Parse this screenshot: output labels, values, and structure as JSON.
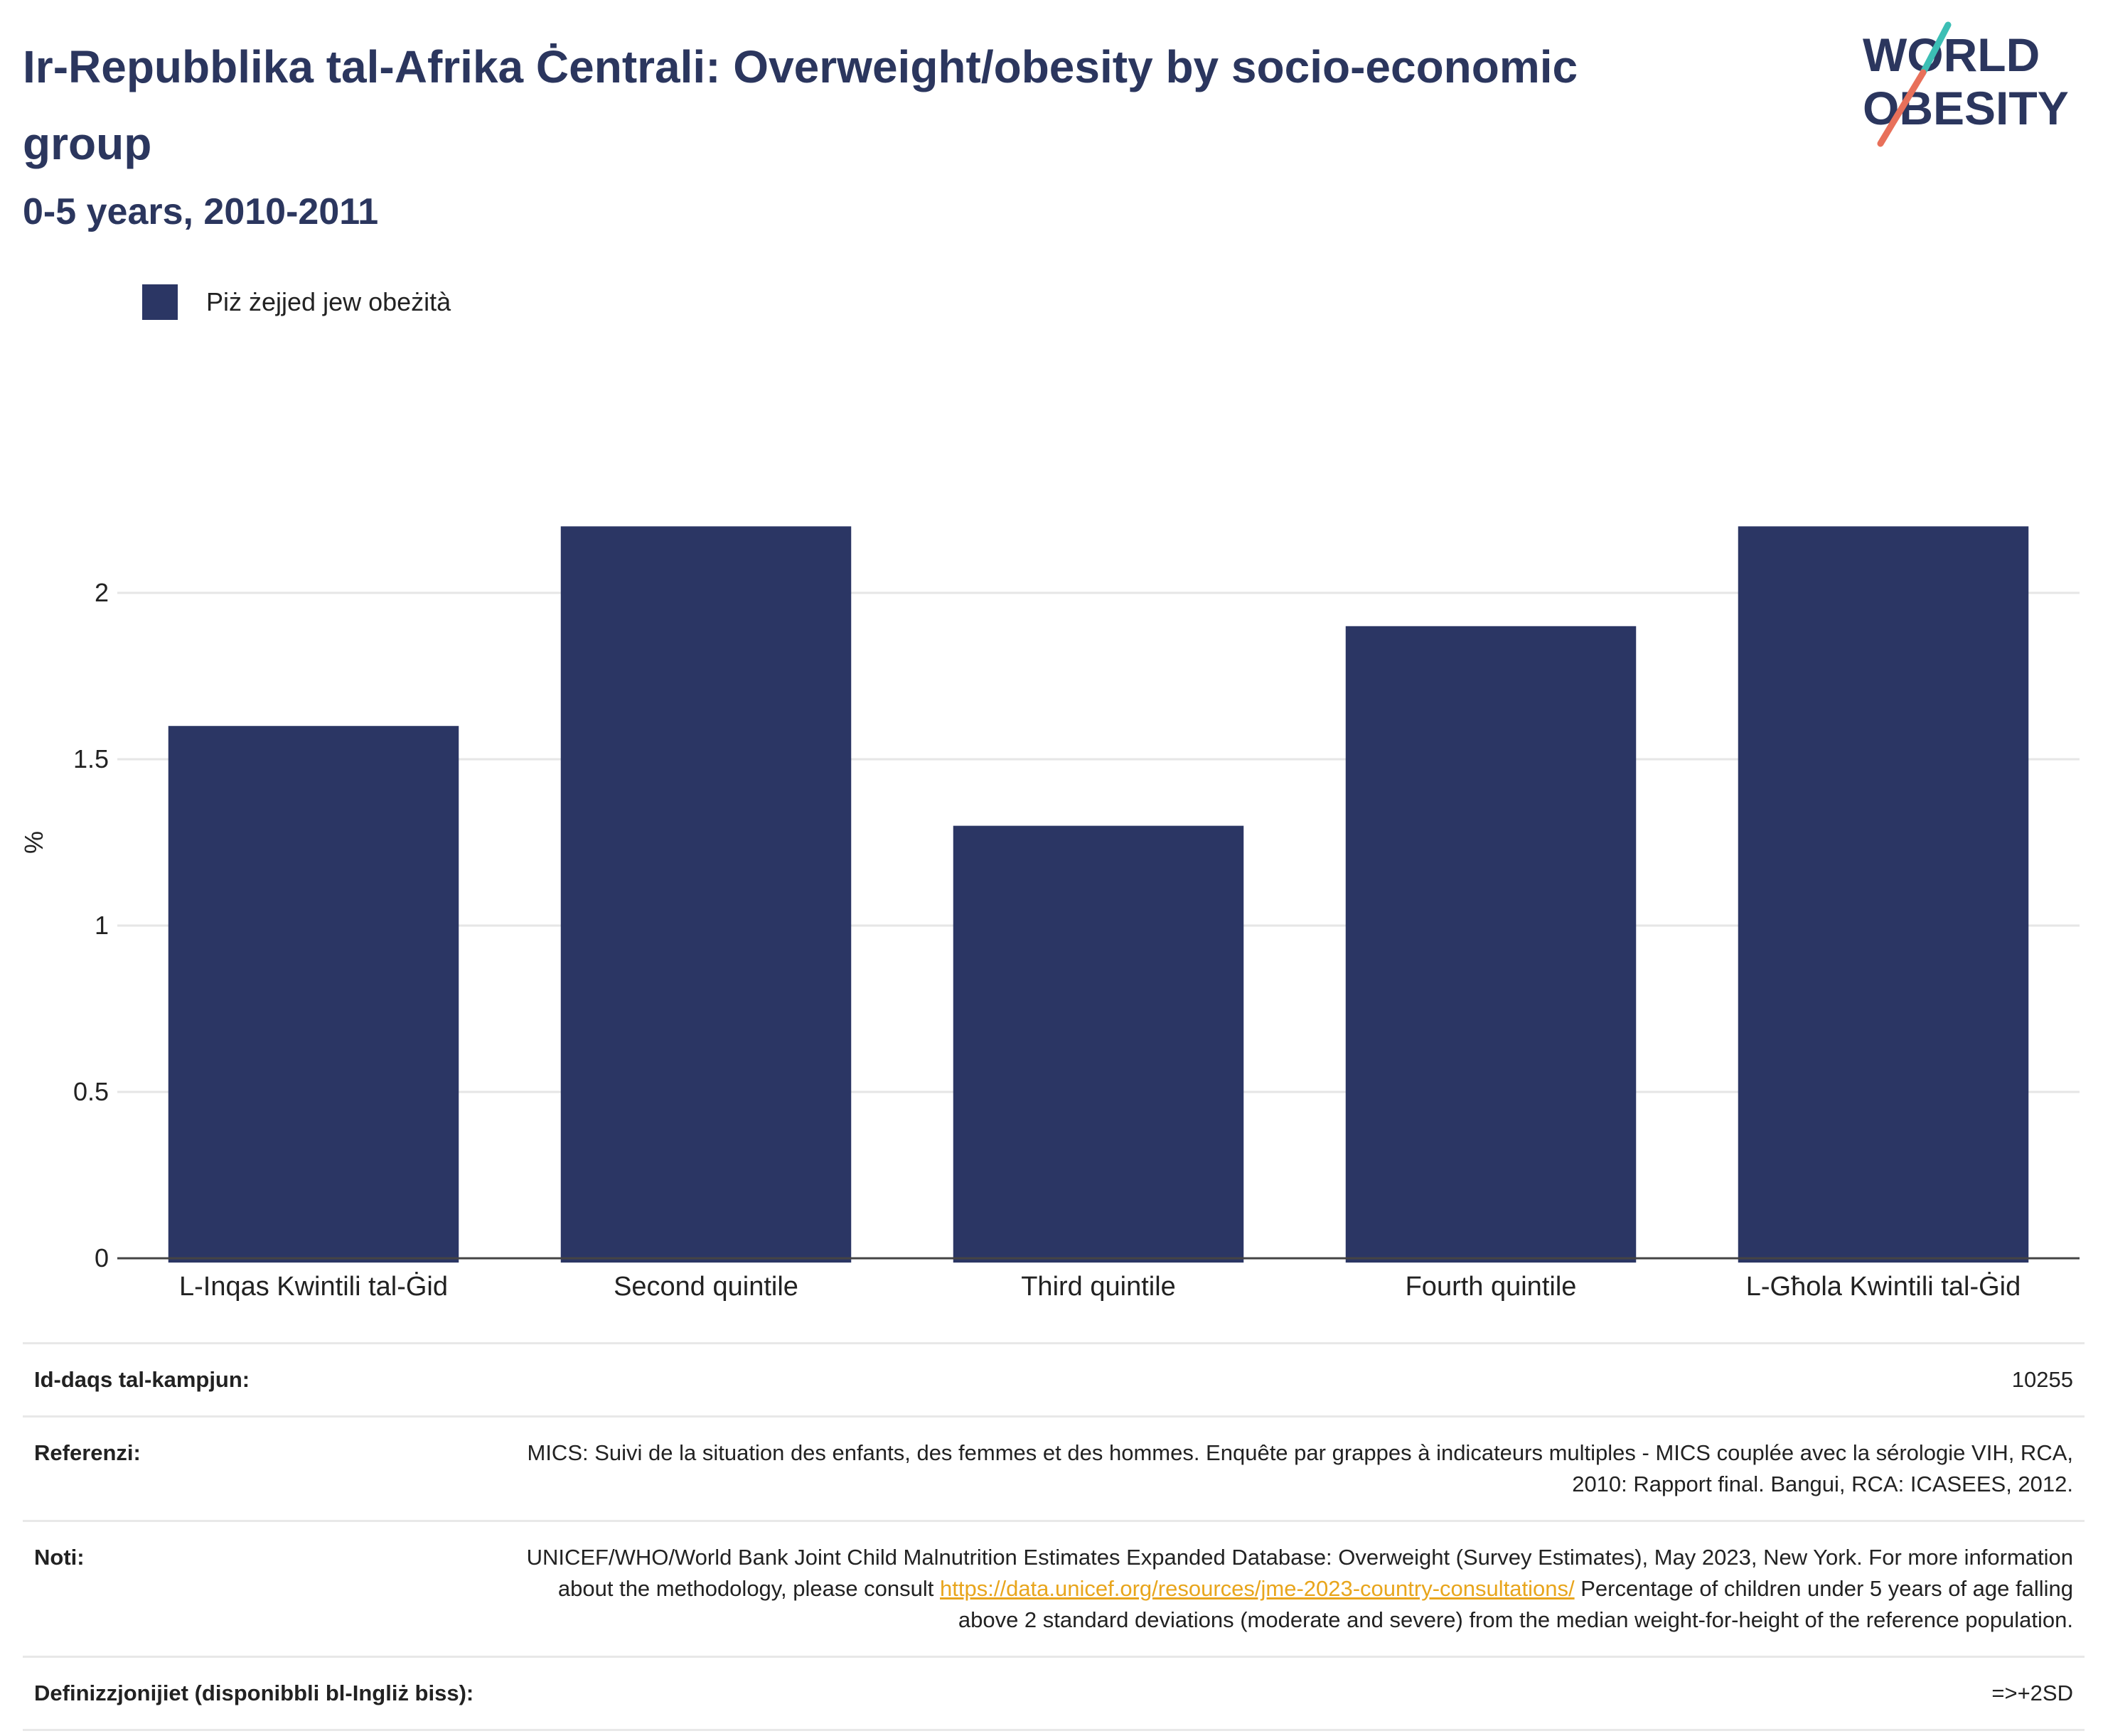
{
  "header": {
    "title": "Ir-Repubblika tal-Afrika Ċentrali: Overweight/obesity by socio-economic group",
    "subtitle": "0-5 years, 2010-2011"
  },
  "logo": {
    "line1": "WORLD",
    "line2": "OBESITY"
  },
  "legend": {
    "label": "Piż żejjed jew obeżità",
    "color": "#2b3664"
  },
  "chart_data": {
    "type": "bar",
    "categories": [
      "L-Inqas Kwintili tal-Ġid",
      "Second quintile",
      "Third quintile",
      "Fourth quintile",
      "L-Għola Kwintili tal-Ġid"
    ],
    "series": [
      {
        "name": "Piż żejjed jew obeżità",
        "values": [
          1.6,
          2.2,
          1.3,
          1.9,
          2.2
        ]
      }
    ],
    "ylabel": "%",
    "ylim": [
      0,
      2.5
    ],
    "yticks": [
      0,
      0.5,
      1,
      1.5,
      2
    ],
    "ytick_labels": [
      "0",
      "0.5",
      "1",
      "1.5",
      "2"
    ],
    "grid": true,
    "bar_color": "#2b3664"
  },
  "info": {
    "sample_size": {
      "label": "Id-daqs tal-kampjun:",
      "value": "10255"
    },
    "references": {
      "label": "Referenzi:",
      "value": "MICS: Suivi de la situation des enfants, des femmes et des hommes. Enquête par grappes à indicateurs multiples - MICS couplée avec la sérologie VIH, RCA, 2010: Rapport final. Bangui, RCA: ICASEES, 2012."
    },
    "notes": {
      "label": "Noti:",
      "text_before": "UNICEF/WHO/World Bank Joint Child Malnutrition Estimates Expanded Database: Overweight (Survey Estimates), May 2023, New York. For more information about the methodology, please consult ",
      "link": "https://data.unicef.org/resources/jme-2023-country-consultations/",
      "text_after": " Percentage of children under 5 years of age falling above 2 standard deviations (moderate and severe) from the median weight-for-height of the reference population."
    },
    "definitions": {
      "label": "Definizzjonijiet (disponibbli bl-Ingliż biss):",
      "value": "=>+2SD"
    }
  }
}
